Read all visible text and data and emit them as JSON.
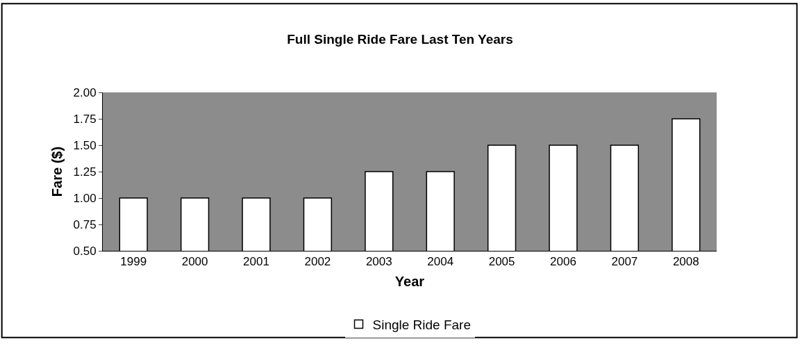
{
  "chart_data": {
    "type": "bar",
    "title": "Full Single Ride Fare Last Ten Years",
    "xlabel": "Year",
    "ylabel": "Fare ($)",
    "categories": [
      "1999",
      "2000",
      "2001",
      "2002",
      "2003",
      "2004",
      "2005",
      "2006",
      "2007",
      "2008"
    ],
    "series": [
      {
        "name": "Single Ride Fare",
        "color": "#ffffff",
        "values": [
          1.0,
          1.0,
          1.0,
          1.0,
          1.25,
          1.25,
          1.5,
          1.5,
          1.5,
          1.75
        ]
      }
    ],
    "ylim": [
      0.5,
      2.0
    ],
    "yticks": [
      {
        "value": 0.5,
        "label": "0.50"
      },
      {
        "value": 0.75,
        "label": "0.75"
      },
      {
        "value": 1.0,
        "label": "1.00"
      },
      {
        "value": 1.25,
        "label": "1.25"
      },
      {
        "value": 1.5,
        "label": "1.50"
      },
      {
        "value": 1.75,
        "label": "1.75"
      },
      {
        "value": 2.0,
        "label": "2.00"
      }
    ],
    "grid": false,
    "legend": "bottom"
  }
}
